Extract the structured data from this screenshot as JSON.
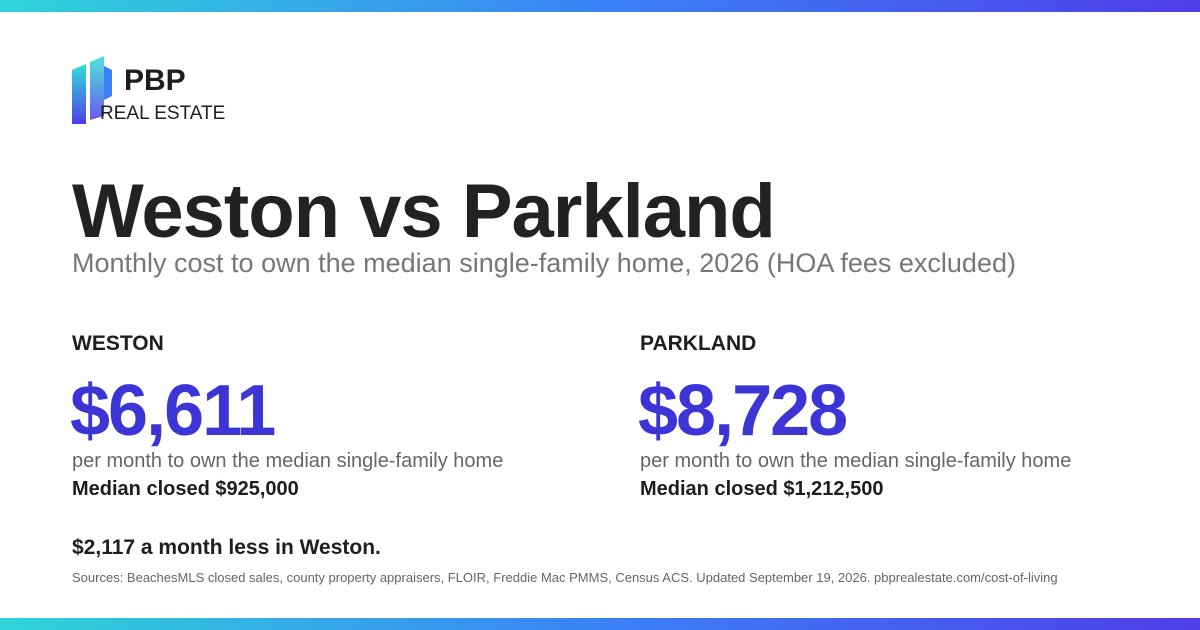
{
  "brand": {
    "name": "PBP",
    "tagline": "REAL ESTATE"
  },
  "title": "Weston vs Parkland",
  "subtitle": "Monthly cost to own the median single-family home, 2026 (HOA fees excluded)",
  "cities": [
    {
      "name": "WESTON",
      "amount": "$6,611",
      "caption": "per month to own the median single-family home",
      "median": "Median closed $925,000"
    },
    {
      "name": "PARKLAND",
      "amount": "$8,728",
      "caption": "per month to own the median single-family home",
      "median": "Median closed $1,212,500"
    }
  ],
  "difference": "$2,117 a month less in Weston.",
  "sources": "Sources: BeachesMLS closed sales, county property appraisers, FLOIR, Freddie Mac PMMS, Census ACS. Updated September 19, 2026. pbprealestate.com/cost-of-living"
}
